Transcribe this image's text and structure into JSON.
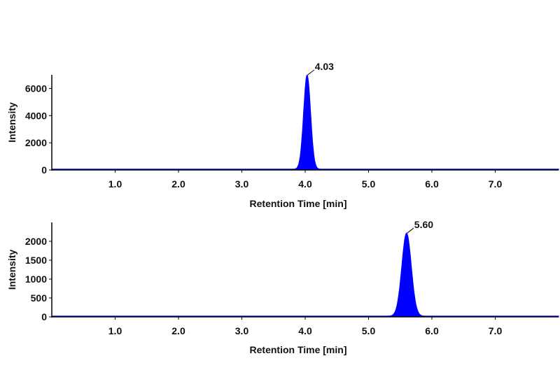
{
  "chart_data": [
    {
      "type": "area",
      "xlabel": "Retention Time [min]",
      "ylabel": "Intensity",
      "xlim": [
        0,
        8
      ],
      "ylim": [
        0,
        7000
      ],
      "x_ticks": [
        1.0,
        2.0,
        3.0,
        4.0,
        5.0,
        6.0,
        7.0
      ],
      "x_tick_labels": [
        "1.0",
        "2.0",
        "3.0",
        "4.0",
        "5.0",
        "6.0",
        "7.0"
      ],
      "y_ticks": [
        0,
        2000,
        4000,
        6000
      ],
      "y_tick_labels": [
        "0",
        "2000",
        "4000",
        "6000"
      ],
      "series": [
        {
          "color": "#0000ff",
          "peak": {
            "x": 4.03,
            "y": 6950,
            "width_sigma": 0.055
          },
          "baseline": 60
        }
      ],
      "annotations": [
        {
          "x": 4.03,
          "y": 6950,
          "text": "4.03"
        }
      ]
    },
    {
      "type": "area",
      "xlabel": "Retention Time [min]",
      "ylabel": "Intensity",
      "xlim": [
        0,
        8
      ],
      "ylim": [
        0,
        2500
      ],
      "x_ticks": [
        1.0,
        2.0,
        3.0,
        4.0,
        5.0,
        6.0,
        7.0
      ],
      "x_tick_labels": [
        "1.0",
        "2.0",
        "3.0",
        "4.0",
        "5.0",
        "6.0",
        "7.0"
      ],
      "y_ticks": [
        0,
        500,
        1000,
        1500,
        2000
      ],
      "y_tick_labels": [
        "0",
        "500",
        "1000",
        "1500",
        "2000"
      ],
      "series": [
        {
          "color": "#0000ff",
          "peak": {
            "x": 5.6,
            "y": 2200,
            "width_sigma": 0.075
          },
          "baseline": 20
        }
      ],
      "annotations": [
        {
          "x": 5.6,
          "y": 2200,
          "text": "5.60"
        }
      ]
    }
  ]
}
